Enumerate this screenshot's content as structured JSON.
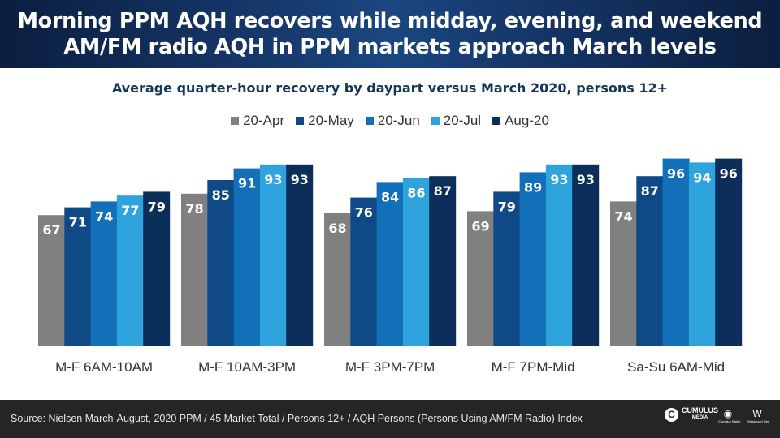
{
  "header": {
    "title_line1": "Morning PPM AQH recovers while midday, evening, and weekend",
    "title_line2": "AM/FM radio AQH in PPM markets approach March levels"
  },
  "chart_data": {
    "type": "bar",
    "title": "Average quarter-hour recovery by daypart versus March 2020, persons 12+",
    "categories": [
      "M-F 6AM-10AM",
      "M-F 10AM-3PM",
      "M-F 3PM-7PM",
      "M-F 7PM-Mid",
      "Sa-Su 6AM-Mid"
    ],
    "series": [
      {
        "name": "20-Apr",
        "color": "#808080",
        "values": [
          67,
          78,
          68,
          69,
          74
        ]
      },
      {
        "name": "20-May",
        "color": "#0f4a86",
        "values": [
          71,
          85,
          76,
          79,
          87
        ]
      },
      {
        "name": "20-Jun",
        "color": "#1270b8",
        "values": [
          74,
          91,
          84,
          89,
          96
        ]
      },
      {
        "name": "20-Jul",
        "color": "#2ea3dc",
        "values": [
          77,
          93,
          86,
          93,
          94
        ]
      },
      {
        "name": "Aug-20",
        "color": "#0b2e5a",
        "values": [
          79,
          93,
          87,
          93,
          96
        ]
      }
    ],
    "ylim": [
      0,
      100
    ],
    "grid": false,
    "legend_position": "top"
  },
  "footer": {
    "source": "Source: Nielsen March-August, 2020 PPM / 45 Market Total / Persons 12+ / AQH Persons (Persons Using AM/FM Radio) Index",
    "logo_main": "CUMULUS",
    "logo_main_sub": "MEDIA",
    "logo2_caption": "Cumulus Radio",
    "logo3_caption": "Westwood One"
  }
}
